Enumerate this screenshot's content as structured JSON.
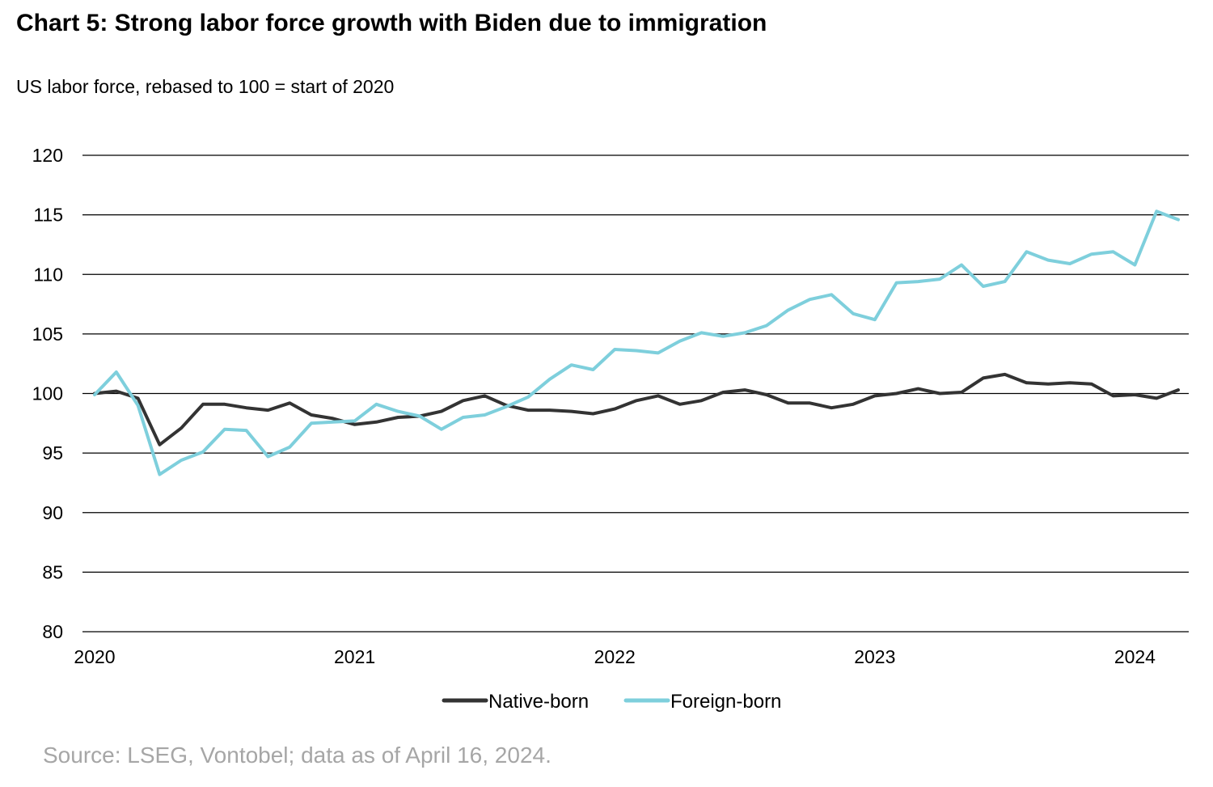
{
  "title": "Chart 5: Strong labor force growth with Biden due to immigration",
  "subtitle": "US labor force, rebased to 100 = start of 2020",
  "source": "Source: LSEG, Vontobel; data as of April 16, 2024.",
  "chart_data": {
    "type": "line",
    "title": "Chart 5: Strong labor force growth with Biden due to immigration",
    "xlabel": "",
    "ylabel": "",
    "x_ticks": [
      "2020",
      "2021",
      "2022",
      "2023",
      "2024"
    ],
    "y_ticks": [
      80,
      85,
      90,
      95,
      100,
      105,
      110,
      115,
      120
    ],
    "ylim": [
      80,
      120
    ],
    "xlim": [
      "2020-01",
      "2024-03"
    ],
    "grid": "horizontal",
    "legend_position": "bottom",
    "x": [
      "2020-01",
      "2020-02",
      "2020-03",
      "2020-04",
      "2020-05",
      "2020-06",
      "2020-07",
      "2020-08",
      "2020-09",
      "2020-10",
      "2020-11",
      "2020-12",
      "2021-01",
      "2021-02",
      "2021-03",
      "2021-04",
      "2021-05",
      "2021-06",
      "2021-07",
      "2021-08",
      "2021-09",
      "2021-10",
      "2021-11",
      "2021-12",
      "2022-01",
      "2022-02",
      "2022-03",
      "2022-04",
      "2022-05",
      "2022-06",
      "2022-07",
      "2022-08",
      "2022-09",
      "2022-10",
      "2022-11",
      "2022-12",
      "2023-01",
      "2023-02",
      "2023-03",
      "2023-04",
      "2023-05",
      "2023-06",
      "2023-07",
      "2023-08",
      "2023-09",
      "2023-10",
      "2023-11",
      "2023-12",
      "2024-01",
      "2024-02",
      "2024-03"
    ],
    "series": [
      {
        "name": "Native-born",
        "color": "#333333",
        "values": [
          100.0,
          100.2,
          99.6,
          95.7,
          97.1,
          99.1,
          99.1,
          98.8,
          98.6,
          99.2,
          98.2,
          97.9,
          97.4,
          97.6,
          98.0,
          98.1,
          98.5,
          99.4,
          99.8,
          99.0,
          98.6,
          98.6,
          98.5,
          98.3,
          98.7,
          99.4,
          99.8,
          99.1,
          99.4,
          100.1,
          100.3,
          99.9,
          99.2,
          99.2,
          98.8,
          99.1,
          99.8,
          100.0,
          100.4,
          100.0,
          100.1,
          101.3,
          101.6,
          100.9,
          100.8,
          100.9,
          100.8,
          99.8,
          99.9,
          99.6,
          100.3
        ]
      },
      {
        "name": "Foreign-born",
        "color": "#7ecfdc",
        "values": [
          99.9,
          101.8,
          99.0,
          93.2,
          94.4,
          95.1,
          97.0,
          96.9,
          94.7,
          95.5,
          97.5,
          97.6,
          97.7,
          99.1,
          98.5,
          98.1,
          97.0,
          98.0,
          98.2,
          98.9,
          99.7,
          101.2,
          102.4,
          102.0,
          103.7,
          103.6,
          103.4,
          104.4,
          105.1,
          104.8,
          105.1,
          105.7,
          107.0,
          107.9,
          108.3,
          106.7,
          106.2,
          109.3,
          109.4,
          109.6,
          110.8,
          109.0,
          109.4,
          111.9,
          111.2,
          110.9,
          111.7,
          111.9,
          110.8,
          115.3,
          114.6
        ]
      }
    ]
  }
}
